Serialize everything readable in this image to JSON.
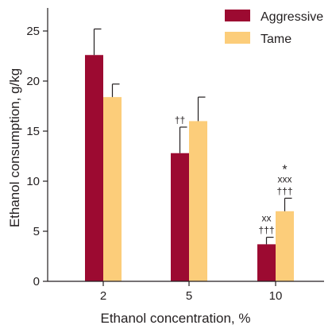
{
  "chart_data": {
    "type": "bar",
    "xlabel": "Ethanol concentration, %",
    "ylabel": "Ethanol consumption, g/kg",
    "ylim": [
      0,
      27.5
    ],
    "yticks": [
      0,
      5,
      10,
      15,
      20,
      25
    ],
    "categories": [
      "2",
      "5",
      "10"
    ],
    "series": [
      {
        "name": "Aggressive",
        "color": "#9c0a31",
        "values": [
          22.6,
          12.8,
          3.7
        ],
        "errors": [
          2.6,
          2.6,
          0.7
        ]
      },
      {
        "name": "Tame",
        "color": "#fccd7a",
        "values": [
          18.4,
          16.0,
          7.0
        ],
        "errors": [
          1.3,
          2.4,
          1.3
        ]
      }
    ],
    "legend": {
      "placement": "top-right"
    },
    "annotations": [
      {
        "category": "5",
        "series": "Aggressive",
        "lines": [
          "††"
        ]
      },
      {
        "category": "10",
        "series": "Aggressive",
        "lines": [
          "xx",
          "†††"
        ]
      },
      {
        "category": "10",
        "series": "Tame",
        "lines": [
          "*",
          "xxx",
          "†††"
        ]
      }
    ]
  }
}
